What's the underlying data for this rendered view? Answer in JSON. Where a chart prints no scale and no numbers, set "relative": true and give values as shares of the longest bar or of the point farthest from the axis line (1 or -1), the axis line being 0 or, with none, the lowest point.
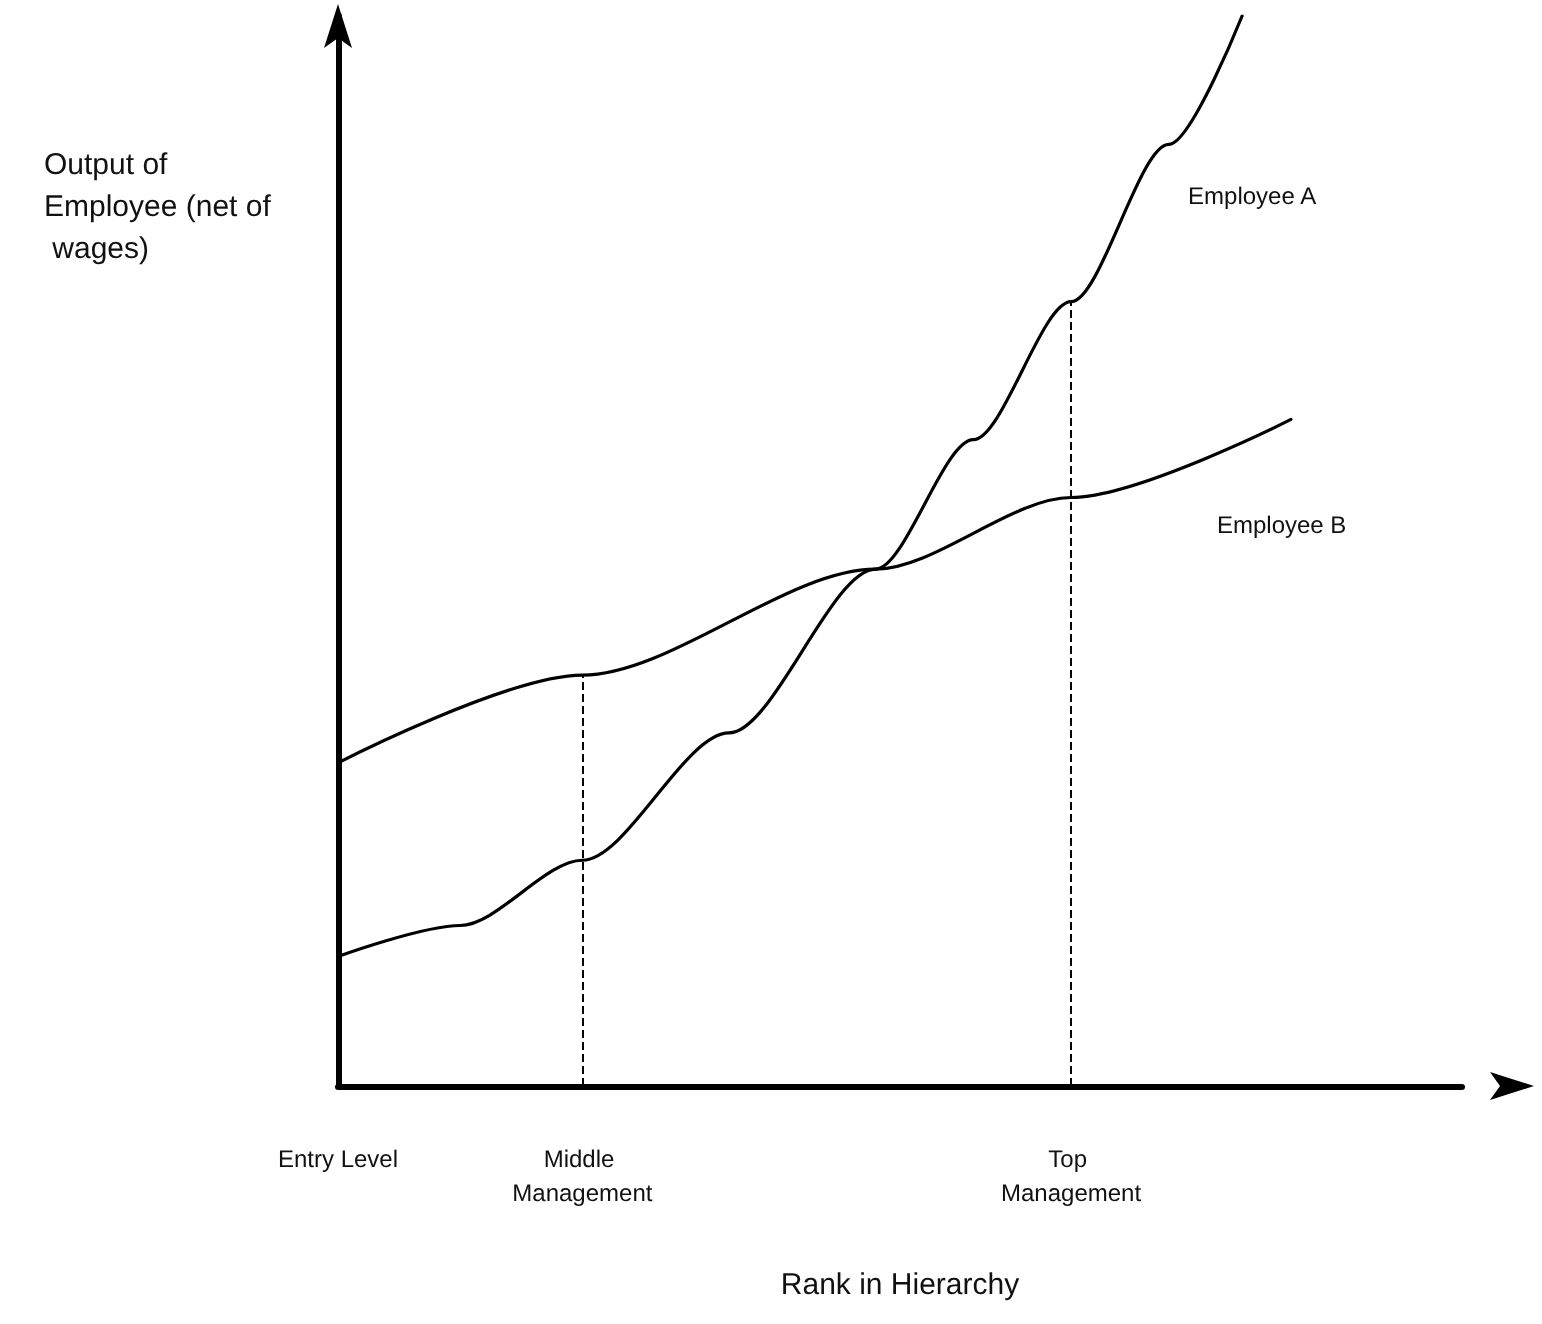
{
  "chart_data": {
    "type": "line",
    "relative": true,
    "xlabel": "Rank in Hierarchy",
    "ylabel": "Output of Employee (net of wages)",
    "categories": [
      "Entry Level",
      null,
      null,
      null,
      null,
      null,
      null,
      null,
      null,
      null,
      "Middle Management",
      null,
      null,
      null,
      null,
      null,
      null,
      null,
      null,
      null,
      null,
      null,
      null,
      null,
      null,
      null,
      null,
      null,
      null,
      null,
      "Top Management",
      null,
      null,
      null,
      null,
      null,
      null,
      null,
      null,
      null,
      null,
      null,
      null,
      null,
      null,
      null,
      null
    ],
    "series": [
      {
        "name": "Employee A",
        "color": "#000000",
        "values": [
          0.121,
          null,
          null,
          null,
          null,
          0.15,
          null,
          null,
          null,
          null,
          0.211,
          null,
          null,
          null,
          null,
          null,
          0.33,
          null,
          null,
          null,
          null,
          null,
          0.483,
          null,
          null,
          null,
          0.604,
          null,
          null,
          null,
          0.733,
          null,
          null,
          null,
          0.88,
          null,
          null,
          1,
          null,
          null,
          null,
          null,
          null,
          null,
          null,
          null,
          null
        ]
      },
      {
        "name": "Employee B",
        "color": "#000000",
        "values": [
          0.302,
          null,
          null,
          null,
          null,
          null,
          null,
          null,
          null,
          null,
          0.384,
          null,
          null,
          null,
          null,
          null,
          null,
          null,
          null,
          null,
          null,
          null,
          0.483,
          null,
          null,
          null,
          null,
          null,
          null,
          null,
          0.55,
          null,
          null,
          null,
          null,
          null,
          null,
          null,
          null,
          0.623,
          null,
          null,
          null,
          null,
          null,
          null,
          null
        ]
      }
    ],
    "ref_lines": [
      {
        "axis": "x",
        "value": "Middle Management",
        "line_style": "dashed"
      },
      {
        "axis": "x",
        "value": "Top Management",
        "line_style": "dashed"
      }
    ],
    "marker": "none",
    "line_style": "solid",
    "grid": false,
    "legend": false
  }
}
